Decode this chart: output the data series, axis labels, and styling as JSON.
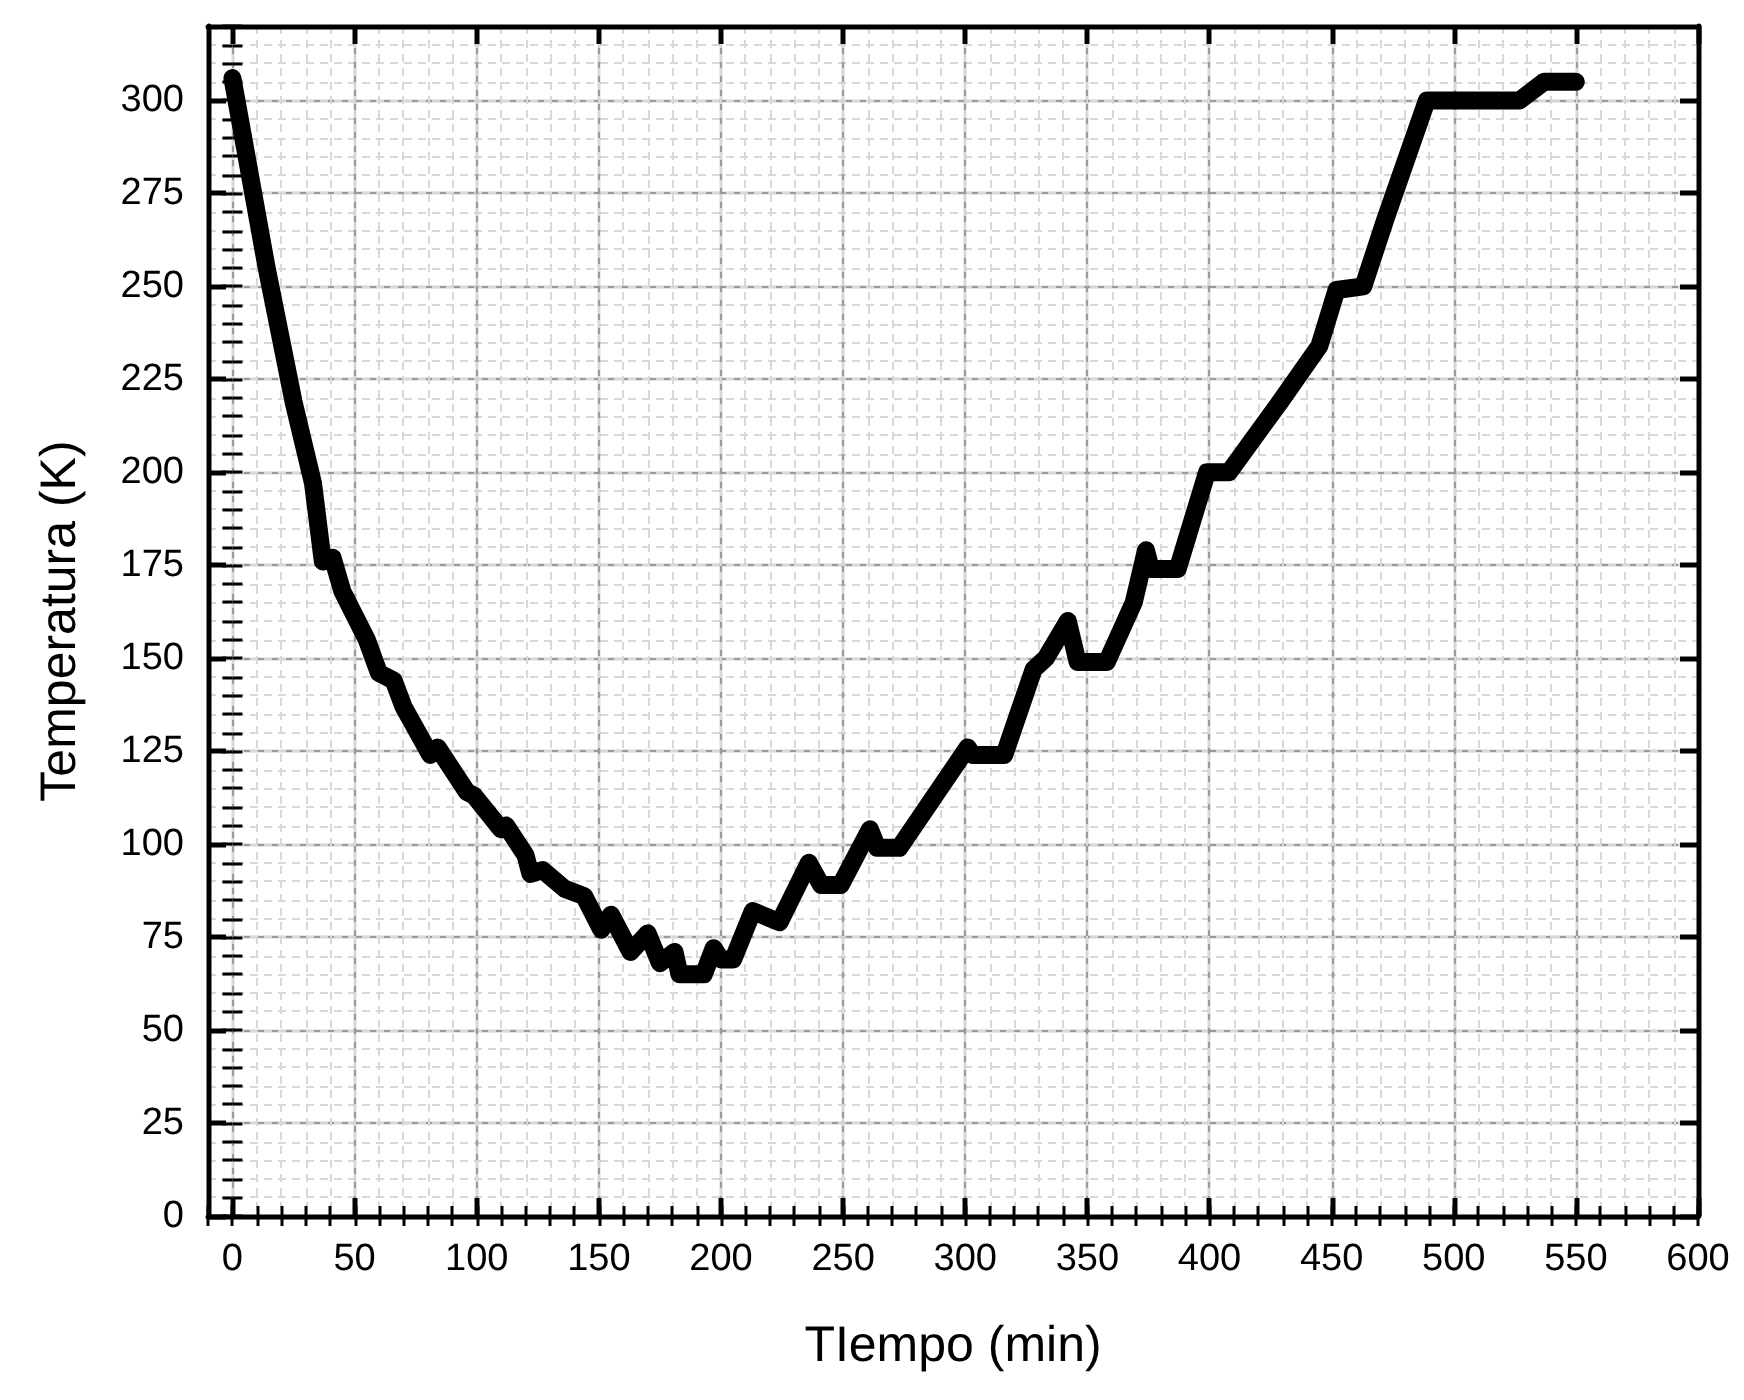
{
  "chart_data": {
    "type": "line",
    "xlabel": "TIempo (min)",
    "ylabel": "Temperatura (K)",
    "xlim": [
      -10,
      600
    ],
    "xticks": [
      0,
      50,
      100,
      150,
      200,
      250,
      300,
      350,
      400,
      450,
      500,
      550,
      600
    ],
    "ylim": [
      0,
      320
    ],
    "yticks": [
      0,
      25,
      50,
      75,
      100,
      125,
      150,
      175,
      200,
      225,
      250,
      275,
      300
    ],
    "grid": true,
    "line_style": "solid",
    "series": [
      {
        "color": "#000000",
        "x": [
          0,
          14,
          25,
          33,
          37,
          41,
          45,
          55,
          60,
          66,
          70,
          81,
          84,
          96,
          99,
          110,
          112,
          120,
          122,
          127,
          136,
          144,
          151,
          155,
          163,
          170,
          175,
          181,
          183,
          193,
          197,
          200,
          205,
          213,
          224,
          236,
          241,
          249,
          261,
          264,
          273,
          301,
          303,
          316,
          328,
          333,
          342,
          346,
          358,
          369,
          374,
          376,
          387,
          399,
          408,
          429,
          445,
          452,
          463,
          472,
          489,
          527,
          537,
          550
        ],
        "values": [
          306,
          255,
          219,
          197,
          176,
          177,
          168,
          155,
          146,
          144,
          137,
          124,
          126,
          114,
          113,
          104,
          105,
          97,
          92,
          93,
          88,
          86,
          77,
          81,
          71,
          76,
          68,
          71,
          65,
          65,
          72,
          69,
          69,
          82,
          79,
          95,
          89,
          89,
          104,
          99,
          99,
          126,
          124,
          124,
          147,
          150,
          160,
          149,
          149,
          165,
          179,
          174,
          174,
          200,
          200,
          219,
          234,
          249,
          250,
          268,
          300,
          300,
          305,
          305
        ]
      }
    ]
  }
}
